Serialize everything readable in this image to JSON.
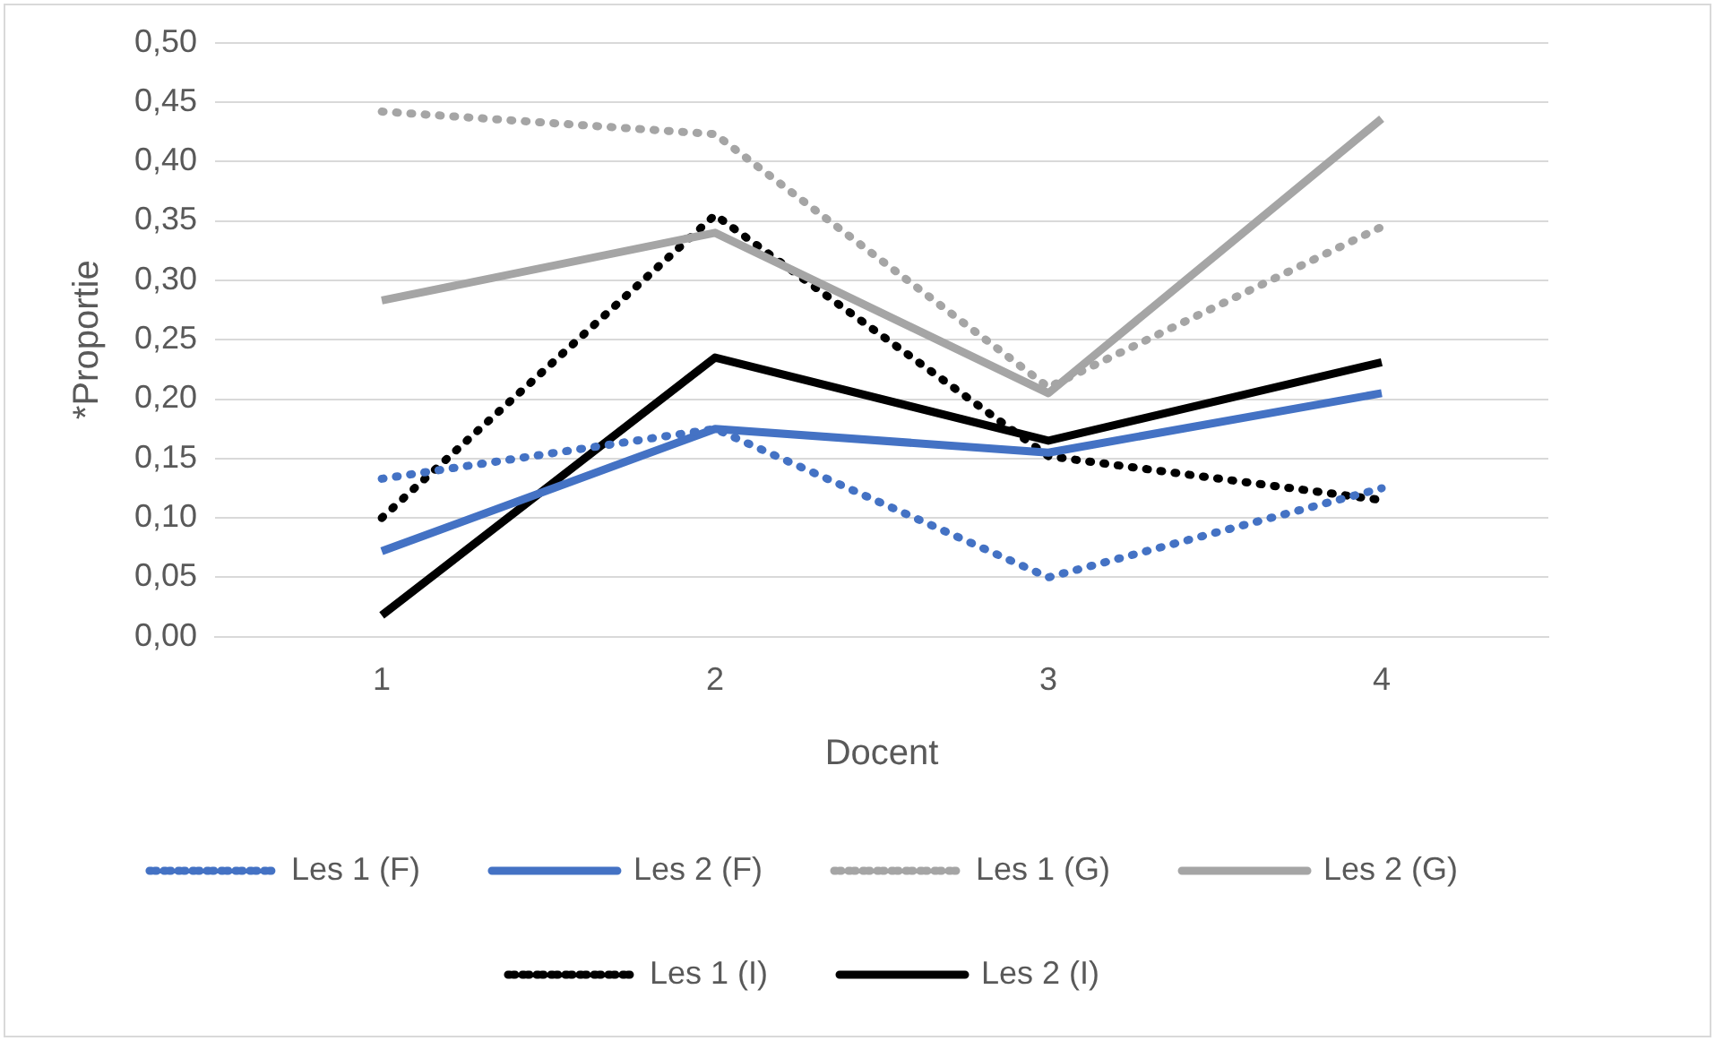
{
  "chart_data": {
    "type": "line",
    "xlabel": "Docent",
    "ylabel": "*Proportie",
    "categories": [
      "1",
      "2",
      "3",
      "4"
    ],
    "series": [
      {
        "name": "Les 1 (F)",
        "color": "#4472c4",
        "line_style": "dotted",
        "values": [
          0.133,
          0.175,
          0.05,
          0.125
        ]
      },
      {
        "name": "Les 2 (F)",
        "color": "#4472c4",
        "line_style": "solid",
        "values": [
          0.072,
          0.175,
          0.155,
          0.205
        ]
      },
      {
        "name": "Les 1 (G)",
        "color": "#a5a5a5",
        "line_style": "dotted",
        "values": [
          0.442,
          0.423,
          0.21,
          0.345
        ]
      },
      {
        "name": "Les 2 (G)",
        "color": "#a5a5a5",
        "line_style": "solid",
        "values": [
          0.283,
          0.34,
          0.205,
          0.436
        ]
      },
      {
        "name": "Les 1 (I)",
        "color": "#000000",
        "line_style": "dotted",
        "values": [
          0.1,
          0.355,
          0.152,
          0.115
        ]
      },
      {
        "name": "Les 2 (I)",
        "color": "#000000",
        "line_style": "solid",
        "values": [
          0.018,
          0.235,
          0.165,
          0.231
        ]
      }
    ],
    "ylim": [
      0,
      0.5
    ],
    "yticks": [
      {
        "value": 0,
        "label": "0,00"
      },
      {
        "value": 0.05,
        "label": "0,05"
      },
      {
        "value": 0.1,
        "label": "0,10"
      },
      {
        "value": 0.15,
        "label": "0,15"
      },
      {
        "value": 0.2,
        "label": "0,20"
      },
      {
        "value": 0.25,
        "label": "0,25"
      },
      {
        "value": 0.3,
        "label": "0,30"
      },
      {
        "value": 0.35,
        "label": "0,35"
      },
      {
        "value": 0.4,
        "label": "0,40"
      },
      {
        "value": 0.45,
        "label": "0,45"
      },
      {
        "value": 0.5,
        "label": "0,50"
      }
    ],
    "grid": "y",
    "legend": "bottom",
    "marker": "none"
  }
}
